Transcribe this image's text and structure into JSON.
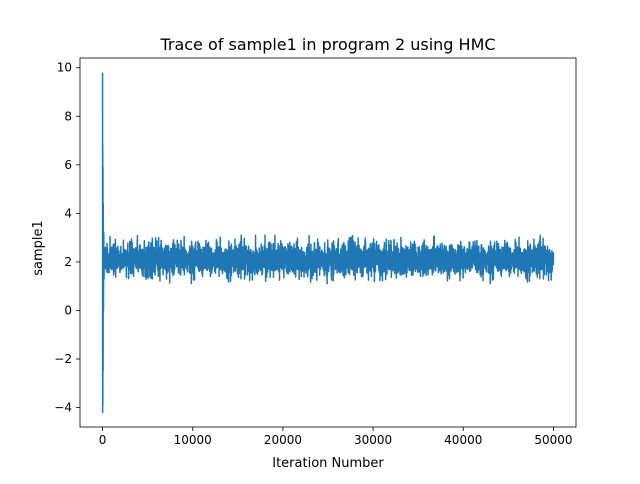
{
  "chart_data": {
    "type": "line",
    "title": "Trace of sample1 in program 2 using HMC",
    "xlabel": "Iteration Number",
    "ylabel": "sample1",
    "xlim": [
      -2500,
      52500
    ],
    "ylim": [
      -4.8,
      10.4
    ],
    "x_ticks": [
      0,
      10000,
      20000,
      30000,
      40000,
      50000
    ],
    "x_tick_labels": [
      "0",
      "10000",
      "20000",
      "30000",
      "40000",
      "50000"
    ],
    "y_ticks": [
      -4,
      -2,
      0,
      2,
      4,
      6,
      8,
      10
    ],
    "y_tick_labels": [
      "−4",
      "−2",
      "0",
      "2",
      "4",
      "6",
      "8",
      "10"
    ],
    "grid": false,
    "line_color": "#1f77b4",
    "series": [
      {
        "name": "",
        "burn_in": {
          "x": [
            0,
            5,
            12,
            20,
            30,
            45,
            60,
            80,
            100,
            130,
            160,
            200,
            250
          ],
          "y": [
            9.8,
            4.5,
            -4.2,
            6.8,
            -3.9,
            5.9,
            -2.5,
            4.4,
            0.0,
            3.2,
            1.3,
            2.4,
            2.1
          ]
        },
        "stationary": {
          "x_start": 250,
          "x_end": 50000,
          "mean": 2.1,
          "band_min": 1.1,
          "band_max": 3.1,
          "typical_low": 1.5,
          "typical_high": 2.75
        }
      }
    ]
  }
}
